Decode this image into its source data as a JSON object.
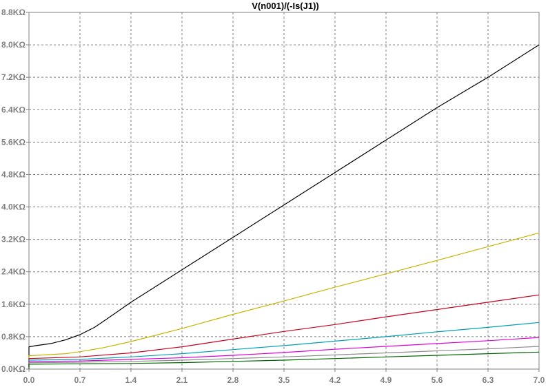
{
  "chart_data": {
    "type": "line",
    "title": "V(n001)/(-Is(J1))",
    "xlabel": "",
    "ylabel": "",
    "xlim": [
      0.0,
      7.0
    ],
    "ylim": [
      0.0,
      8.8
    ],
    "y_unit": "KΩ",
    "grid": true,
    "grid_style": "dashed",
    "x_ticks": [
      {
        "value": 0.0,
        "label": "0.0"
      },
      {
        "value": 0.7,
        "label": "0.7"
      },
      {
        "value": 1.4,
        "label": "1.4"
      },
      {
        "value": 2.1,
        "label": "2.1"
      },
      {
        "value": 2.8,
        "label": "2.8"
      },
      {
        "value": 3.5,
        "label": "3.5"
      },
      {
        "value": 4.2,
        "label": "4.2"
      },
      {
        "value": 4.9,
        "label": "4.9"
      },
      {
        "value": 5.6,
        "label": "5.6"
      },
      {
        "value": 6.3,
        "label": "6.3"
      },
      {
        "value": 7.0,
        "label": "7.0"
      }
    ],
    "y_ticks": [
      {
        "value": 0.0,
        "label": "0.0KΩ"
      },
      {
        "value": 0.8,
        "label": "0.8KΩ"
      },
      {
        "value": 1.6,
        "label": "1.6KΩ"
      },
      {
        "value": 2.4,
        "label": "2.4KΩ"
      },
      {
        "value": 3.2,
        "label": "3.2KΩ"
      },
      {
        "value": 4.0,
        "label": "4.0KΩ"
      },
      {
        "value": 4.8,
        "label": "4.8KΩ"
      },
      {
        "value": 5.6,
        "label": "5.6KΩ"
      },
      {
        "value": 6.4,
        "label": "6.4KΩ"
      },
      {
        "value": 7.2,
        "label": "7.2KΩ"
      },
      {
        "value": 8.0,
        "label": "8.0KΩ"
      },
      {
        "value": 8.8,
        "label": "8.8KΩ"
      }
    ],
    "series": [
      {
        "color": "#000000",
        "x": [
          0.0,
          0.0,
          0.1,
          0.3,
          0.5,
          0.7,
          0.9,
          1.0,
          1.2,
          1.4,
          2.1,
          2.8,
          3.5,
          4.2,
          4.9,
          5.6,
          6.3,
          7.0
        ],
        "y": [
          0.05,
          0.55,
          0.58,
          0.63,
          0.72,
          0.85,
          1.03,
          1.15,
          1.4,
          1.65,
          2.45,
          3.25,
          4.05,
          4.85,
          5.65,
          6.45,
          7.2,
          8.0
        ]
      },
      {
        "color": "#c8b400",
        "x": [
          0.0,
          0.0,
          0.5,
          0.7,
          1.0,
          1.4,
          2.1,
          2.8,
          3.5,
          4.2,
          4.9,
          5.6,
          6.3,
          7.0
        ],
        "y": [
          0.05,
          0.33,
          0.38,
          0.43,
          0.52,
          0.68,
          1.0,
          1.35,
          1.68,
          2.02,
          2.35,
          2.68,
          3.02,
          3.36
        ]
      },
      {
        "color": "#c8001e",
        "x": [
          0.0,
          0.0,
          0.7,
          1.4,
          2.1,
          2.8,
          3.5,
          4.2,
          4.9,
          5.6,
          6.3,
          7.0
        ],
        "y": [
          0.05,
          0.26,
          0.3,
          0.4,
          0.55,
          0.74,
          0.93,
          1.1,
          1.29,
          1.47,
          1.65,
          1.83
        ]
      },
      {
        "color": "#00a0b4",
        "x": [
          0.0,
          0.0,
          0.7,
          1.4,
          2.1,
          2.8,
          3.5,
          4.2,
          4.9,
          5.6,
          6.3,
          7.0
        ],
        "y": [
          0.05,
          0.22,
          0.24,
          0.3,
          0.38,
          0.48,
          0.58,
          0.69,
          0.8,
          0.92,
          1.03,
          1.15
        ]
      },
      {
        "color": "#dc00dc",
        "x": [
          0.0,
          0.0,
          0.7,
          1.4,
          2.1,
          2.8,
          3.5,
          4.2,
          4.9,
          5.6,
          6.3,
          7.0
        ],
        "y": [
          0.05,
          0.19,
          0.2,
          0.24,
          0.28,
          0.34,
          0.41,
          0.49,
          0.56,
          0.63,
          0.7,
          0.78
        ]
      },
      {
        "color": "#8c8c8c",
        "x": [
          0.0,
          0.0,
          0.7,
          1.4,
          2.1,
          2.8,
          3.5,
          4.2,
          4.9,
          5.6,
          6.3,
          7.0
        ],
        "y": [
          0.05,
          0.16,
          0.17,
          0.19,
          0.22,
          0.26,
          0.3,
          0.35,
          0.4,
          0.45,
          0.5,
          0.56
        ]
      },
      {
        "color": "#006400",
        "x": [
          0.0,
          0.0,
          0.7,
          1.4,
          2.1,
          2.8,
          3.5,
          4.2,
          4.9,
          5.6,
          6.3,
          7.0
        ],
        "y": [
          0.0,
          0.12,
          0.13,
          0.14,
          0.16,
          0.19,
          0.22,
          0.26,
          0.3,
          0.34,
          0.38,
          0.42
        ]
      }
    ],
    "colors": {
      "background": "#ffffff",
      "grid": "#808080",
      "axis": "#808080",
      "tick_label": "#808080",
      "title": "#000000"
    }
  }
}
